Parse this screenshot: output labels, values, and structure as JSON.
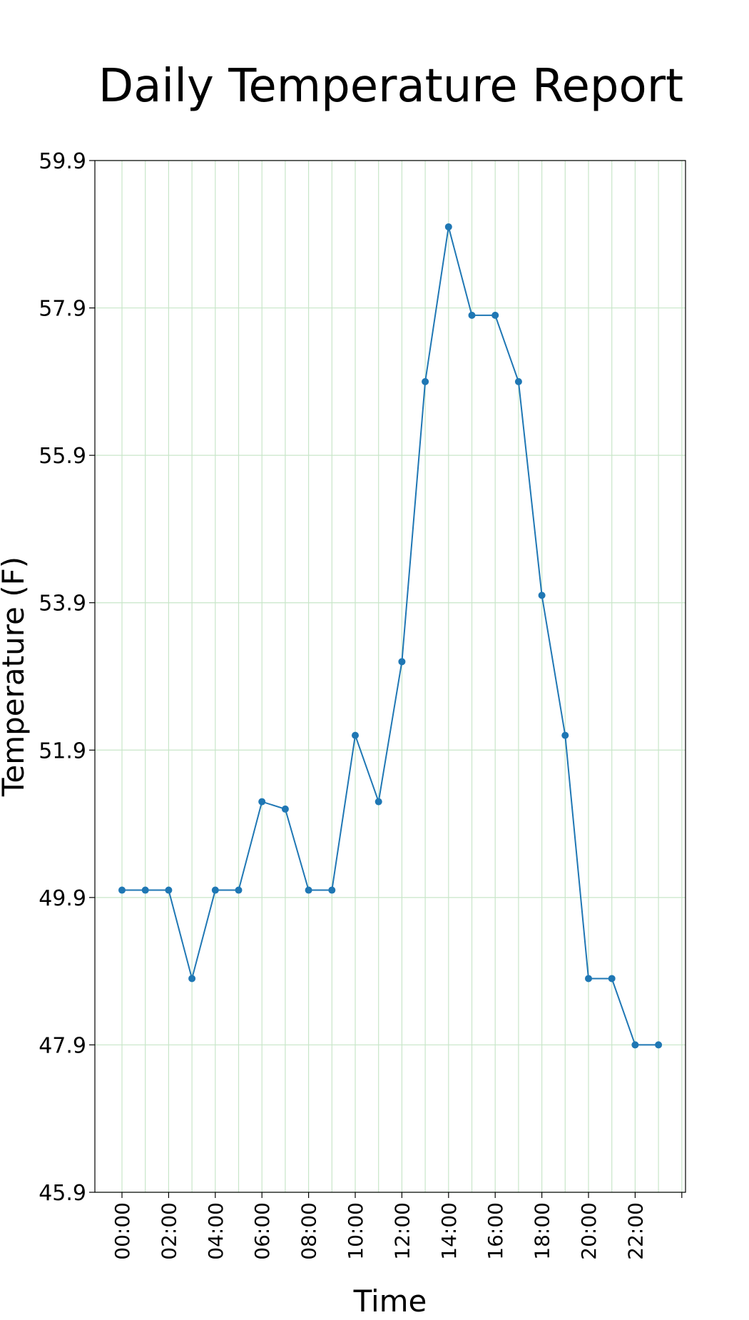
{
  "chart_data": {
    "type": "line",
    "title": "Daily Temperature Report",
    "xlabel": "Time",
    "ylabel": "Temperature (F)",
    "x": [
      "00:00",
      "01:00",
      "02:00",
      "03:00",
      "04:00",
      "05:00",
      "06:00",
      "07:00",
      "08:00",
      "09:00",
      "10:00",
      "11:00",
      "12:00",
      "13:00",
      "14:00",
      "15:00",
      "16:00",
      "17:00",
      "18:00",
      "19:00",
      "20:00",
      "21:00",
      "22:00",
      "23:00"
    ],
    "y": [
      50.0,
      50.0,
      50.0,
      48.8,
      50.0,
      50.0,
      51.2,
      51.1,
      50.0,
      50.0,
      52.1,
      51.2,
      53.1,
      56.9,
      59.0,
      57.8,
      57.8,
      56.9,
      54.0,
      52.1,
      48.8,
      48.8,
      47.9,
      47.9
    ],
    "xticks": [
      "00:00",
      "02:00",
      "04:00",
      "06:00",
      "08:00",
      "10:00",
      "12:00",
      "14:00",
      "16:00",
      "18:00",
      "20:00",
      "22:00"
    ],
    "yticks": [
      "45.9",
      "47.9",
      "49.9",
      "51.9",
      "53.9",
      "55.9",
      "57.9",
      "59.9"
    ],
    "ylim": [
      45.9,
      59.9
    ],
    "grid": true,
    "line_color": "#1f77b4",
    "grid_color": "#c8e6c9"
  }
}
